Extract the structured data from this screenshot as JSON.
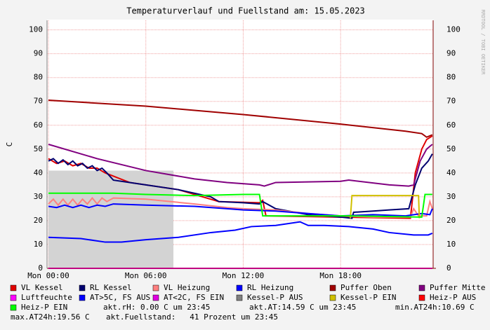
{
  "chart_data": {
    "type": "line",
    "title": "Temperaturverlauf und Fuellstand am: 15.05.2023",
    "y_label": "C",
    "watermark": "RRDTOOL / TOBI OETIKER",
    "xlim": [
      0,
      23.7
    ],
    "ylim": [
      0,
      104
    ],
    "xticks": [
      {
        "value": 0,
        "label": "Mon 00:00"
      },
      {
        "value": 6,
        "label": "Mon 06:00"
      },
      {
        "value": 12,
        "label": "Mon 12:00"
      },
      {
        "value": 18,
        "label": "Mon 18:00"
      }
    ],
    "yticks": [
      0,
      10,
      20,
      30,
      40,
      50,
      60,
      70,
      80,
      90,
      100
    ],
    "grid": true,
    "series": [
      {
        "name": "VL Kessel",
        "color": "#e00000",
        "style": "line",
        "x": [
          0,
          0.5,
          1,
          1.5,
          2,
          2.5,
          3,
          3.5,
          5,
          8,
          10.5,
          13,
          13.2,
          13.4,
          18,
          22.3,
          22.6,
          23,
          23.3,
          23.65
        ],
        "values": [
          46,
          44,
          45,
          43,
          44,
          42,
          42,
          40,
          36,
          33,
          28,
          27.5,
          28.5,
          22,
          21.5,
          21,
          40,
          50,
          54,
          55.5
        ]
      },
      {
        "name": "RL Kessel",
        "color": "#000070",
        "style": "line",
        "x": [
          0,
          0.3,
          0.6,
          0.9,
          1.2,
          1.5,
          1.8,
          2.1,
          2.4,
          2.7,
          3,
          3.3,
          3.6,
          4,
          6,
          8,
          10,
          10.5,
          12,
          13,
          13.2,
          14,
          16,
          18,
          18.7,
          18.8,
          20,
          21,
          22.2,
          22.6,
          23,
          23.4,
          23.65
        ],
        "values": [
          45,
          46,
          44,
          45.5,
          43.5,
          45,
          43,
          44,
          42,
          43,
          41,
          42,
          40,
          37,
          35,
          33,
          30,
          28,
          27.5,
          27,
          28,
          25,
          22.5,
          21.5,
          21,
          23.5,
          24,
          24.5,
          25,
          35,
          42,
          45,
          48
        ]
      },
      {
        "name": "VL Heizung",
        "color": "#ff8080",
        "style": "line",
        "x": [
          0,
          0.3,
          0.6,
          0.9,
          1.2,
          1.5,
          1.8,
          2.1,
          2.4,
          2.7,
          3,
          3.3,
          3.6,
          4,
          6,
          9,
          11,
          12,
          14,
          16,
          18,
          20,
          22.3,
          22.5,
          22.8,
          23.3,
          23.5,
          23.65
        ],
        "values": [
          27,
          29,
          26.5,
          29,
          26.5,
          29,
          26.5,
          29,
          27,
          29.5,
          27,
          29.5,
          28,
          29.5,
          29,
          27,
          25.5,
          25,
          24.5,
          23,
          22,
          21.5,
          21.5,
          25,
          22,
          22,
          28,
          25
        ]
      },
      {
        "name": "RL Heizung",
        "color": "#0000ff",
        "style": "line",
        "x": [
          0,
          0.5,
          1,
          1.5,
          2,
          2.5,
          3,
          3.5,
          4,
          6,
          9,
          11,
          12,
          14,
          16,
          18,
          20,
          22,
          23,
          23.5,
          23.65
        ],
        "values": [
          26,
          25.5,
          26.5,
          25.5,
          26.5,
          25.5,
          26.5,
          26,
          27,
          26.5,
          26,
          25,
          24.5,
          24,
          23,
          22,
          22.5,
          22,
          23,
          22.5,
          25
        ]
      },
      {
        "name": "Puffer Oben",
        "color": "#a00000",
        "style": "line",
        "x": [
          0,
          6,
          12,
          18,
          22,
          23,
          23.3,
          23.65
        ],
        "values": [
          70.5,
          68,
          64.5,
          60.5,
          57.5,
          56.5,
          55,
          56
        ]
      },
      {
        "name": "Puffer Mitte",
        "color": "#800080",
        "style": "line",
        "x": [
          0,
          3,
          6,
          9,
          11,
          13,
          13.3,
          14,
          18,
          18.5,
          21,
          22.2,
          22.5,
          22.9,
          23.3,
          23.65
        ],
        "values": [
          52,
          46,
          41,
          37.5,
          36,
          35,
          34.5,
          36,
          36.5,
          37,
          35,
          34.5,
          35,
          45,
          50,
          52
        ]
      },
      {
        "name": "Luftfeuchte",
        "color": "#ff00ff",
        "style": "line",
        "x": [
          0,
          23.65
        ],
        "values": [
          0,
          0
        ]
      },
      {
        "name": "AT>5C, FS AUS",
        "color": "#0000ff",
        "style": "line",
        "x": [
          0,
          2,
          3.5,
          4.5,
          6,
          8,
          10,
          11.5,
          12.5,
          14,
          15.5,
          16,
          17,
          18.5,
          20,
          21,
          22.5,
          23.4,
          23.65
        ],
        "values": [
          13,
          12.5,
          11,
          11,
          12,
          13,
          15,
          16,
          17.5,
          18,
          19.5,
          18,
          18,
          17.5,
          16.5,
          15,
          14,
          14,
          14.7
        ]
      },
      {
        "name": "AT<2C, FS EIN",
        "color": "#e000e0",
        "style": "line",
        "x": [],
        "values": []
      },
      {
        "name": "Kessel-P AUS",
        "color": "#808080",
        "fill": "#d3d3d3",
        "style": "area",
        "x": [
          0,
          7.7
        ],
        "values": [
          41,
          41
        ]
      },
      {
        "name": "Kessel-P EIN",
        "color": "#d0c000",
        "style": "line",
        "x": [
          18.6,
          18.7,
          22.8,
          22.85
        ],
        "values": [
          21,
          30.5,
          30.5,
          21
        ]
      },
      {
        "name": "Heiz-P AUS",
        "color": "#ff0000",
        "style": "line",
        "x": [],
        "values": []
      },
      {
        "name": "Heiz-P EIN",
        "color": "#00ff00",
        "style": "line",
        "x": [
          0,
          4,
          6,
          9,
          12,
          13,
          13.2,
          18.5,
          23,
          23.2,
          23.65
        ],
        "values": [
          31.5,
          31.5,
          31,
          30.5,
          31,
          31,
          22,
          22,
          21.5,
          31,
          31
        ]
      }
    ],
    "stats": [
      "akt.rH: 0.00 C um 23:45",
      "akt.AT:14.59 C um 23:45",
      "min.AT24h:10.69 C",
      "max.AT24h:19.56 C",
      "akt.Fuellstand:   41 Prozent um 23:45"
    ]
  }
}
